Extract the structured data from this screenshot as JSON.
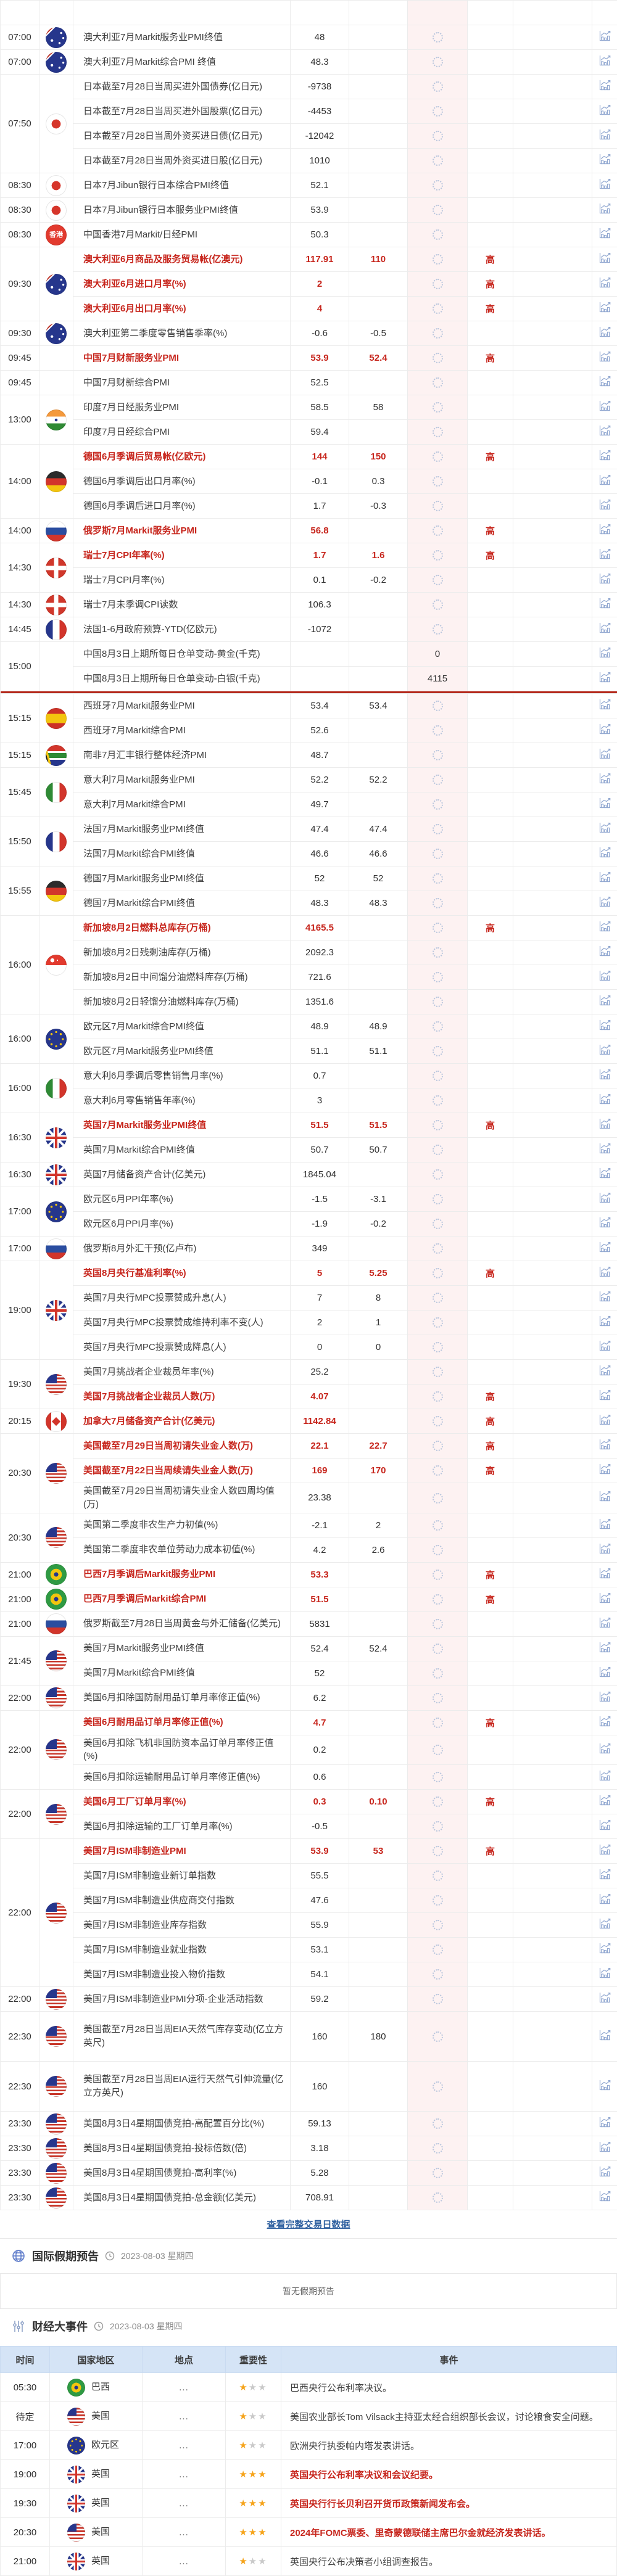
{
  "colors": {
    "red": "#c7261d",
    "link_blue": "#2d5f9f",
    "events_header_bg": "#d5e4f6",
    "star_gold": "#f5a31a",
    "spinner": "#b9c6dd",
    "chart_icon": "#93a9d1",
    "divider_red": "#b5291c",
    "actual_col_pink": "#fdf2f2"
  },
  "calendar": {
    "view_full_link": "查看完整交易日数据",
    "groups": [
      {
        "time": "",
        "flag": "",
        "sliver": true,
        "rows": [
          {
            "event": ""
          }
        ]
      },
      {
        "time": "07:00",
        "flag": "au",
        "rows": [
          {
            "event": "澳大利亚7月Markit服务业PMI终值",
            "previous": "48"
          }
        ]
      },
      {
        "time": "07:00",
        "flag": "au",
        "rows": [
          {
            "event": "澳大利亚7月Markit综合PMI 终值",
            "previous": "48.3"
          }
        ]
      },
      {
        "time": "07:50",
        "flag": "jp",
        "rows": [
          {
            "event": "日本截至7月28日当周买进外国债券(亿日元)",
            "previous": "-9738"
          },
          {
            "event": "日本截至7月28日当周买进外国股票(亿日元)",
            "previous": "-4453"
          },
          {
            "event": "日本截至7月28日当周外资买进日债(亿日元)",
            "previous": "-12042"
          },
          {
            "event": "日本截至7月28日当周外资买进日股(亿日元)",
            "previous": "1010"
          }
        ]
      },
      {
        "time": "08:30",
        "flag": "jp",
        "rows": [
          {
            "event": "日本7月Jibun银行日本综合PMI终值",
            "previous": "52.1"
          }
        ]
      },
      {
        "time": "08:30",
        "flag": "jp",
        "rows": [
          {
            "event": "日本7月Jibun银行日本服务业PMI终值",
            "previous": "53.9"
          }
        ]
      },
      {
        "time": "08:30",
        "flag": "hk",
        "rows": [
          {
            "event": "中国香港7月Markit/日经PMI",
            "previous": "50.3"
          }
        ]
      },
      {
        "time": "09:30",
        "flag": "au",
        "rows": [
          {
            "event": "澳大利亚6月商品及服务贸易帐(亿澳元)",
            "previous": "117.91",
            "forecast": "110",
            "importance": "高",
            "red": true
          },
          {
            "event": "澳大利亚6月进口月率(%)",
            "previous": "2",
            "importance": "高",
            "red": true
          },
          {
            "event": "澳大利亚6月出口月率(%)",
            "previous": "4",
            "importance": "高",
            "red": true
          }
        ]
      },
      {
        "time": "09:30",
        "flag": "au",
        "rows": [
          {
            "event": "澳大利亚第二季度零售销售季率(%)",
            "previous": "-0.6",
            "forecast": "-0.5"
          }
        ]
      },
      {
        "time": "09:45",
        "flag": "",
        "rows": [
          {
            "event": "中国7月财新服务业PMI",
            "previous": "53.9",
            "forecast": "52.4",
            "importance": "高",
            "red": true
          }
        ]
      },
      {
        "time": "09:45",
        "flag": "",
        "rows": [
          {
            "event": "中国7月财新综合PMI",
            "previous": "52.5"
          }
        ]
      },
      {
        "time": "13:00",
        "flag": "in",
        "rows": [
          {
            "event": "印度7月日经服务业PMI",
            "previous": "58.5",
            "forecast": "58"
          },
          {
            "event": "印度7月日经综合PMI",
            "previous": "59.4"
          }
        ]
      },
      {
        "time": "14:00",
        "flag": "de",
        "rows": [
          {
            "event": "德国6月季调后贸易帐(亿欧元)",
            "previous": "144",
            "forecast": "150",
            "importance": "高",
            "red": true
          },
          {
            "event": "德国6月季调后出口月率(%)",
            "previous": "-0.1",
            "forecast": "0.3"
          },
          {
            "event": "德国6月季调后进口月率(%)",
            "previous": "1.7",
            "forecast": "-0.3"
          }
        ]
      },
      {
        "time": "14:00",
        "flag": "ru",
        "rows": [
          {
            "event": "俄罗斯7月Markit服务业PMI",
            "previous": "56.8",
            "importance": "高",
            "red": true
          }
        ]
      },
      {
        "time": "14:30",
        "flag": "ch",
        "rows": [
          {
            "event": "瑞士7月CPI年率(%)",
            "previous": "1.7",
            "forecast": "1.6",
            "importance": "高",
            "red": true
          },
          {
            "event": "瑞士7月CPI月率(%)",
            "previous": "0.1",
            "forecast": "-0.2"
          }
        ]
      },
      {
        "time": "14:30",
        "flag": "ch",
        "rows": [
          {
            "event": "瑞士7月未季调CPI读数",
            "previous": "106.3"
          }
        ]
      },
      {
        "time": "14:45",
        "flag": "fr",
        "rows": [
          {
            "event": "法国1-6月政府预算-YTD(亿欧元)",
            "previous": "-1072"
          }
        ]
      },
      {
        "time": "15:00",
        "flag": "",
        "divider": true,
        "rows": [
          {
            "event": "中国8月3日上期所每日仓单变动-黄金(千克)",
            "actual": "0"
          },
          {
            "event": "中国8月3日上期所每日仓单变动-白银(千克)",
            "actual": "4115"
          }
        ]
      },
      {
        "time": "15:15",
        "flag": "es",
        "rows": [
          {
            "event": "西班牙7月Markit服务业PMI",
            "previous": "53.4",
            "forecast": "53.4"
          },
          {
            "event": "西班牙7月Markit综合PMI",
            "previous": "52.6"
          }
        ]
      },
      {
        "time": "15:15",
        "flag": "za",
        "rows": [
          {
            "event": "南非7月汇丰银行整体经济PMI",
            "previous": "48.7"
          }
        ]
      },
      {
        "time": "15:45",
        "flag": "it",
        "rows": [
          {
            "event": "意大利7月Markit服务业PMI",
            "previous": "52.2",
            "forecast": "52.2"
          },
          {
            "event": "意大利7月Markit综合PMI",
            "previous": "49.7"
          }
        ]
      },
      {
        "time": "15:50",
        "flag": "fr",
        "rows": [
          {
            "event": "法国7月Markit服务业PMI终值",
            "previous": "47.4",
            "forecast": "47.4"
          },
          {
            "event": "法国7月Markit综合PMI终值",
            "previous": "46.6",
            "forecast": "46.6"
          }
        ]
      },
      {
        "time": "15:55",
        "flag": "de",
        "rows": [
          {
            "event": "德国7月Markit服务业PMI终值",
            "previous": "52",
            "forecast": "52"
          },
          {
            "event": "德国7月Markit综合PMI终值",
            "previous": "48.3",
            "forecast": "48.3"
          }
        ]
      },
      {
        "time": "16:00",
        "flag": "sg",
        "rows": [
          {
            "event": "新加坡8月2日燃料总库存(万桶)",
            "previous": "4165.5",
            "importance": "高",
            "red": true
          },
          {
            "event": "新加坡8月2日残剩油库存(万桶)",
            "previous": "2092.3"
          },
          {
            "event": "新加坡8月2日中间馏分油燃料库存(万桶)",
            "previous": "721.6"
          },
          {
            "event": "新加坡8月2日轻馏分油燃料库存(万桶)",
            "previous": "1351.6"
          }
        ]
      },
      {
        "time": "16:00",
        "flag": "eu",
        "rows": [
          {
            "event": "欧元区7月Markit综合PMI终值",
            "previous": "48.9",
            "forecast": "48.9"
          },
          {
            "event": "欧元区7月Markit服务业PMI终值",
            "previous": "51.1",
            "forecast": "51.1"
          }
        ]
      },
      {
        "time": "16:00",
        "flag": "it",
        "rows": [
          {
            "event": "意大利6月季调后零售销售月率(%)",
            "previous": "0.7"
          },
          {
            "event": "意大利6月零售销售年率(%)",
            "previous": "3"
          }
        ]
      },
      {
        "time": "16:30",
        "flag": "gb",
        "rows": [
          {
            "event": "英国7月Markit服务业PMI终值",
            "previous": "51.5",
            "forecast": "51.5",
            "importance": "高",
            "red": true
          },
          {
            "event": "英国7月Markit综合PMI终值",
            "previous": "50.7",
            "forecast": "50.7"
          }
        ]
      },
      {
        "time": "16:30",
        "flag": "gb",
        "rows": [
          {
            "event": "英国7月储备资产合计(亿美元)",
            "previous": "1845.04"
          }
        ]
      },
      {
        "time": "17:00",
        "flag": "eu",
        "rows": [
          {
            "event": "欧元区6月PPI年率(%)",
            "previous": "-1.5",
            "forecast": "-3.1"
          },
          {
            "event": "欧元区6月PPI月率(%)",
            "previous": "-1.9",
            "forecast": "-0.2"
          }
        ]
      },
      {
        "time": "17:00",
        "flag": "ru",
        "rows": [
          {
            "event": "俄罗斯8月外汇干预(亿卢布)",
            "previous": "349"
          }
        ]
      },
      {
        "time": "19:00",
        "flag": "gb",
        "rows": [
          {
            "event": "英国8月央行基准利率(%)",
            "previous": "5",
            "forecast": "5.25",
            "importance": "高",
            "red": true
          },
          {
            "event": "英国7月央行MPC投票赞成升息(人)",
            "previous": "7",
            "forecast": "8"
          },
          {
            "event": "英国7月央行MPC投票赞成维持利率不变(人)",
            "previous": "2",
            "forecast": "1"
          },
          {
            "event": "英国7月央行MPC投票赞成降息(人)",
            "previous": "0",
            "forecast": "0"
          }
        ]
      },
      {
        "time": "19:30",
        "flag": "us",
        "rows": [
          {
            "event": "美国7月挑战者企业裁员年率(%)",
            "previous": "25.2"
          },
          {
            "event": "美国7月挑战者企业裁员人数(万)",
            "previous": "4.07",
            "importance": "高",
            "red": true
          }
        ]
      },
      {
        "time": "20:15",
        "flag": "ca",
        "rows": [
          {
            "event": "加拿大7月储备资产合计(亿美元)",
            "previous": "1142.84",
            "importance": "高",
            "red": true
          }
        ]
      },
      {
        "time": "20:30",
        "flag": "us",
        "rows": [
          {
            "event": "美国截至7月29日当周初请失业金人数(万)",
            "previous": "22.1",
            "forecast": "22.7",
            "importance": "高",
            "red": true
          },
          {
            "event": "美国截至7月22日当周续请失业金人数(万)",
            "previous": "169",
            "forecast": "170",
            "importance": "高",
            "red": true
          },
          {
            "event": "美国截至7月29日当周初请失业金人数四周均值(万)",
            "previous": "23.38"
          }
        ]
      },
      {
        "time": "20:30",
        "flag": "us",
        "rows": [
          {
            "event": "美国第二季度非农生产力初值(%)",
            "previous": "-2.1",
            "forecast": "2"
          },
          {
            "event": "美国第二季度非农单位劳动力成本初值(%)",
            "previous": "4.2",
            "forecast": "2.6"
          }
        ]
      },
      {
        "time": "21:00",
        "flag": "br",
        "rows": [
          {
            "event": "巴西7月季调后Markit服务业PMI",
            "previous": "53.3",
            "importance": "高",
            "red": true
          }
        ]
      },
      {
        "time": "21:00",
        "flag": "br",
        "rows": [
          {
            "event": "巴西7月季调后Markit综合PMI",
            "previous": "51.5",
            "importance": "高",
            "red": true
          }
        ]
      },
      {
        "time": "21:00",
        "flag": "ru",
        "rows": [
          {
            "event": "俄罗斯截至7月28日当周黄金与外汇储备(亿美元)",
            "previous": "5831"
          }
        ]
      },
      {
        "time": "21:45",
        "flag": "us",
        "rows": [
          {
            "event": "美国7月Markit服务业PMI终值",
            "previous": "52.4",
            "forecast": "52.4"
          },
          {
            "event": "美国7月Markit综合PMI终值",
            "previous": "52"
          }
        ]
      },
      {
        "time": "22:00",
        "flag": "us",
        "rows": [
          {
            "event": "美国6月扣除国防耐用品订单月率修正值(%)",
            "previous": "6.2"
          }
        ]
      },
      {
        "time": "22:00",
        "flag": "us",
        "rows": [
          {
            "event": "美国6月耐用品订单月率修正值(%)",
            "previous": "4.7",
            "importance": "高",
            "red": true
          },
          {
            "event": "美国6月扣除飞机非国防资本品订单月率修正值(%)",
            "previous": "0.2"
          },
          {
            "event": "美国6月扣除运输耐用品订单月率修正值(%)",
            "previous": "0.6"
          }
        ]
      },
      {
        "time": "22:00",
        "flag": "us",
        "rows": [
          {
            "event": "美国6月工厂订单月率(%)",
            "previous": "0.3",
            "forecast": "0.10",
            "importance": "高",
            "red": true
          },
          {
            "event": "美国6月扣除运输的工厂订单月率(%)",
            "previous": "-0.5"
          }
        ]
      },
      {
        "time": "22:00",
        "flag": "us",
        "rows": [
          {
            "event": "美国7月ISM非制造业PMI",
            "previous": "53.9",
            "forecast": "53",
            "importance": "高",
            "red": true
          },
          {
            "event": "美国7月ISM非制造业新订单指数",
            "previous": "55.5"
          },
          {
            "event": "美国7月ISM非制造业供应商交付指数",
            "previous": "47.6"
          },
          {
            "event": "美国7月ISM非制造业库存指数",
            "previous": "55.9"
          },
          {
            "event": "美国7月ISM非制造业就业指数",
            "previous": "53.1"
          },
          {
            "event": "美国7月ISM非制造业投入物价指数",
            "previous": "54.1"
          }
        ]
      },
      {
        "time": "22:00",
        "flag": "us",
        "rows": [
          {
            "event": "美国7月ISM非制造业PMI分项-企业活动指数",
            "previous": "59.2"
          }
        ]
      },
      {
        "time": "22:30",
        "flag": "us",
        "rows": [
          {
            "event": "美国截至7月28日当周EIA天然气库存变动(亿立方英尺)",
            "previous": "160",
            "forecast": "180",
            "tall": true
          }
        ]
      },
      {
        "time": "22:30",
        "flag": "us",
        "rows": [
          {
            "event": "美国截至7月28日当周EIA运行天然气引伸流量(亿立方英尺)",
            "previous": "160",
            "tall": true
          }
        ]
      },
      {
        "time": "23:30",
        "flag": "us",
        "rows": [
          {
            "event": "美国8月3日4星期国债竞拍-高配置百分比(%)",
            "previous": "59.13"
          }
        ]
      },
      {
        "time": "23:30",
        "flag": "us",
        "rows": [
          {
            "event": "美国8月3日4星期国债竞拍-投标倍数(倍)",
            "previous": "3.18"
          }
        ]
      },
      {
        "time": "23:30",
        "flag": "us",
        "rows": [
          {
            "event": "美国8月3日4星期国债竞拍-高利率(%)",
            "previous": "5.28"
          }
        ]
      },
      {
        "time": "23:30",
        "flag": "us",
        "rows": [
          {
            "event": "美国8月3日4星期国债竞拍-总金额(亿美元)",
            "previous": "708.91"
          }
        ]
      }
    ]
  },
  "holiday": {
    "title": "国际假期预告",
    "date": "2023-08-03 星期四",
    "empty_text": "暂无假期预告"
  },
  "events": {
    "title": "财经大事件",
    "date": "2023-08-03 星期四",
    "headers": [
      "时间",
      "国家地区",
      "地点",
      "重要性",
      "事件"
    ],
    "rows": [
      {
        "time": "05:30",
        "flag": "br",
        "country": "巴西",
        "location": "...",
        "stars": 1,
        "event": "巴西央行公布利率决议。"
      },
      {
        "time": "待定",
        "flag": "us",
        "country": "美国",
        "location": "...",
        "stars": 1,
        "event": "美国农业部长Tom Vilsack主持亚太经合组织部长会议，讨论粮食安全问题。"
      },
      {
        "time": "17:00",
        "flag": "eu",
        "country": "欧元区",
        "location": "...",
        "stars": 1,
        "event": "欧洲央行执委帕内塔发表讲话。"
      },
      {
        "time": "19:00",
        "flag": "gb",
        "country": "英国",
        "location": "...",
        "stars": 3,
        "event": "英国央行公布利率决议和会议纪要。",
        "red": true
      },
      {
        "time": "19:30",
        "flag": "gb",
        "country": "英国",
        "location": "...",
        "stars": 3,
        "event": "英国央行行长贝利召开货币政策新闻发布会。",
        "red": true
      },
      {
        "time": "20:30",
        "flag": "us",
        "country": "美国",
        "location": "...",
        "stars": 3,
        "event": "2024年FOMC票委、里奇蒙德联储主席巴尔金就经济发表讲话。",
        "red": true
      },
      {
        "time": "21:00",
        "flag": "gb",
        "country": "英国",
        "location": "...",
        "stars": 1,
        "event": "英国央行公布决策者小组调查报告。"
      }
    ]
  }
}
